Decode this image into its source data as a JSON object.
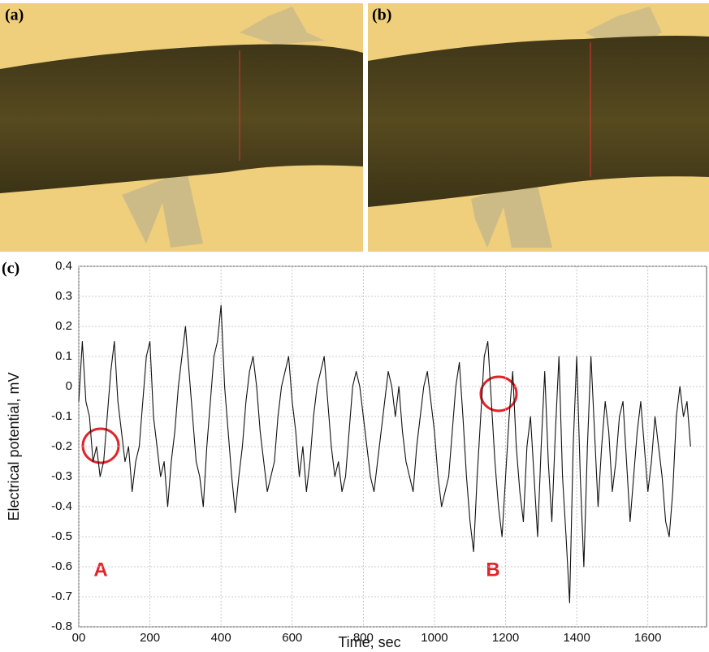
{
  "images": [
    {
      "label": "(a)"
    },
    {
      "label": "(b)"
    }
  ],
  "chart_data": {
    "type": "line",
    "panel_label": "(c)",
    "x_label": "Time, sec",
    "y_label": "Electrical potential, mV",
    "annotations": [
      "A",
      "B"
    ],
    "xlim": [
      0,
      1765
    ],
    "ylim": [
      -0.8,
      0.4
    ],
    "xticks": [
      {
        "value": 0,
        "label": "00"
      },
      200,
      400,
      600,
      800,
      1000,
      1200,
      1400,
      1600
    ],
    "yticks": [
      0.4,
      0.3,
      0.2,
      0.1,
      0,
      -0.1,
      -0.2,
      -0.3,
      -0.4,
      -0.5,
      -0.6,
      -0.7,
      -0.8
    ],
    "grid": true,
    "x": [
      0,
      10,
      20,
      30,
      40,
      50,
      60,
      70,
      80,
      90,
      100,
      110,
      120,
      130,
      140,
      150,
      160,
      170,
      180,
      190,
      200,
      210,
      220,
      230,
      240,
      250,
      260,
      270,
      280,
      290,
      300,
      310,
      320,
      330,
      340,
      350,
      360,
      370,
      380,
      390,
      400,
      410,
      420,
      430,
      440,
      450,
      460,
      470,
      480,
      490,
      500,
      510,
      520,
      530,
      540,
      550,
      560,
      570,
      580,
      590,
      600,
      610,
      620,
      630,
      640,
      650,
      660,
      670,
      680,
      690,
      700,
      710,
      720,
      730,
      740,
      750,
      760,
      770,
      780,
      790,
      800,
      810,
      820,
      830,
      840,
      850,
      860,
      870,
      880,
      890,
      900,
      910,
      920,
      930,
      940,
      950,
      960,
      970,
      980,
      990,
      1000,
      1010,
      1020,
      1030,
      1040,
      1050,
      1060,
      1070,
      1080,
      1090,
      1100,
      1110,
      1120,
      1130,
      1140,
      1150,
      1160,
      1170,
      1180,
      1190,
      1200,
      1210,
      1220,
      1230,
      1240,
      1250,
      1260,
      1270,
      1280,
      1290,
      1300,
      1310,
      1320,
      1330,
      1340,
      1350,
      1360,
      1370,
      1380,
      1390,
      1400,
      1410,
      1420,
      1430,
      1440,
      1450,
      1460,
      1470,
      1480,
      1490,
      1500,
      1510,
      1520,
      1530,
      1540,
      1550,
      1560,
      1570,
      1580,
      1590,
      1600,
      1610,
      1620,
      1630,
      1640,
      1650,
      1660,
      1670,
      1680,
      1690,
      1700,
      1710,
      1720
    ],
    "series": [
      {
        "color": "#111111",
        "values": [
          -0.05,
          0.15,
          -0.05,
          -0.1,
          -0.25,
          -0.2,
          -0.3,
          -0.25,
          -0.1,
          0.05,
          0.15,
          -0.05,
          -0.15,
          -0.25,
          -0.2,
          -0.35,
          -0.25,
          -0.2,
          -0.05,
          0.1,
          0.15,
          -0.1,
          -0.2,
          -0.3,
          -0.25,
          -0.4,
          -0.25,
          -0.15,
          0.0,
          0.1,
          0.2,
          0.05,
          -0.1,
          -0.25,
          -0.3,
          -0.4,
          -0.2,
          -0.05,
          0.1,
          0.15,
          0.27,
          0.0,
          -0.15,
          -0.3,
          -0.42,
          -0.3,
          -0.2,
          -0.05,
          0.05,
          0.1,
          0.0,
          -0.15,
          -0.25,
          -0.35,
          -0.3,
          -0.25,
          -0.1,
          0.0,
          0.05,
          0.1,
          -0.05,
          -0.15,
          -0.3,
          -0.2,
          -0.35,
          -0.25,
          -0.1,
          0.0,
          0.05,
          0.1,
          -0.05,
          -0.2,
          -0.3,
          -0.25,
          -0.35,
          -0.3,
          -0.15,
          0.0,
          0.05,
          0.0,
          -0.1,
          -0.2,
          -0.3,
          -0.35,
          -0.25,
          -0.15,
          -0.05,
          0.05,
          0.0,
          -0.1,
          0.0,
          -0.15,
          -0.25,
          -0.3,
          -0.35,
          -0.2,
          -0.1,
          0.0,
          0.05,
          -0.05,
          -0.15,
          -0.3,
          -0.4,
          -0.35,
          -0.3,
          -0.15,
          0.0,
          0.08,
          -0.1,
          -0.3,
          -0.45,
          -0.55,
          -0.3,
          -0.1,
          0.1,
          0.15,
          -0.05,
          -0.25,
          -0.4,
          -0.5,
          -0.3,
          -0.1,
          0.05,
          -0.2,
          -0.35,
          -0.45,
          -0.2,
          -0.1,
          -0.3,
          -0.5,
          -0.2,
          0.05,
          -0.25,
          -0.45,
          -0.15,
          0.1,
          -0.3,
          -0.5,
          -0.72,
          -0.2,
          0.1,
          -0.3,
          -0.6,
          -0.2,
          0.1,
          -0.15,
          -0.4,
          -0.2,
          -0.05,
          -0.15,
          -0.35,
          -0.25,
          -0.1,
          -0.05,
          -0.25,
          -0.45,
          -0.3,
          -0.15,
          -0.05,
          -0.2,
          -0.35,
          -0.25,
          -0.1,
          -0.2,
          -0.3,
          -0.45,
          -0.5,
          -0.35,
          -0.1,
          0.0,
          -0.1,
          -0.05,
          -0.2
        ]
      }
    ]
  }
}
